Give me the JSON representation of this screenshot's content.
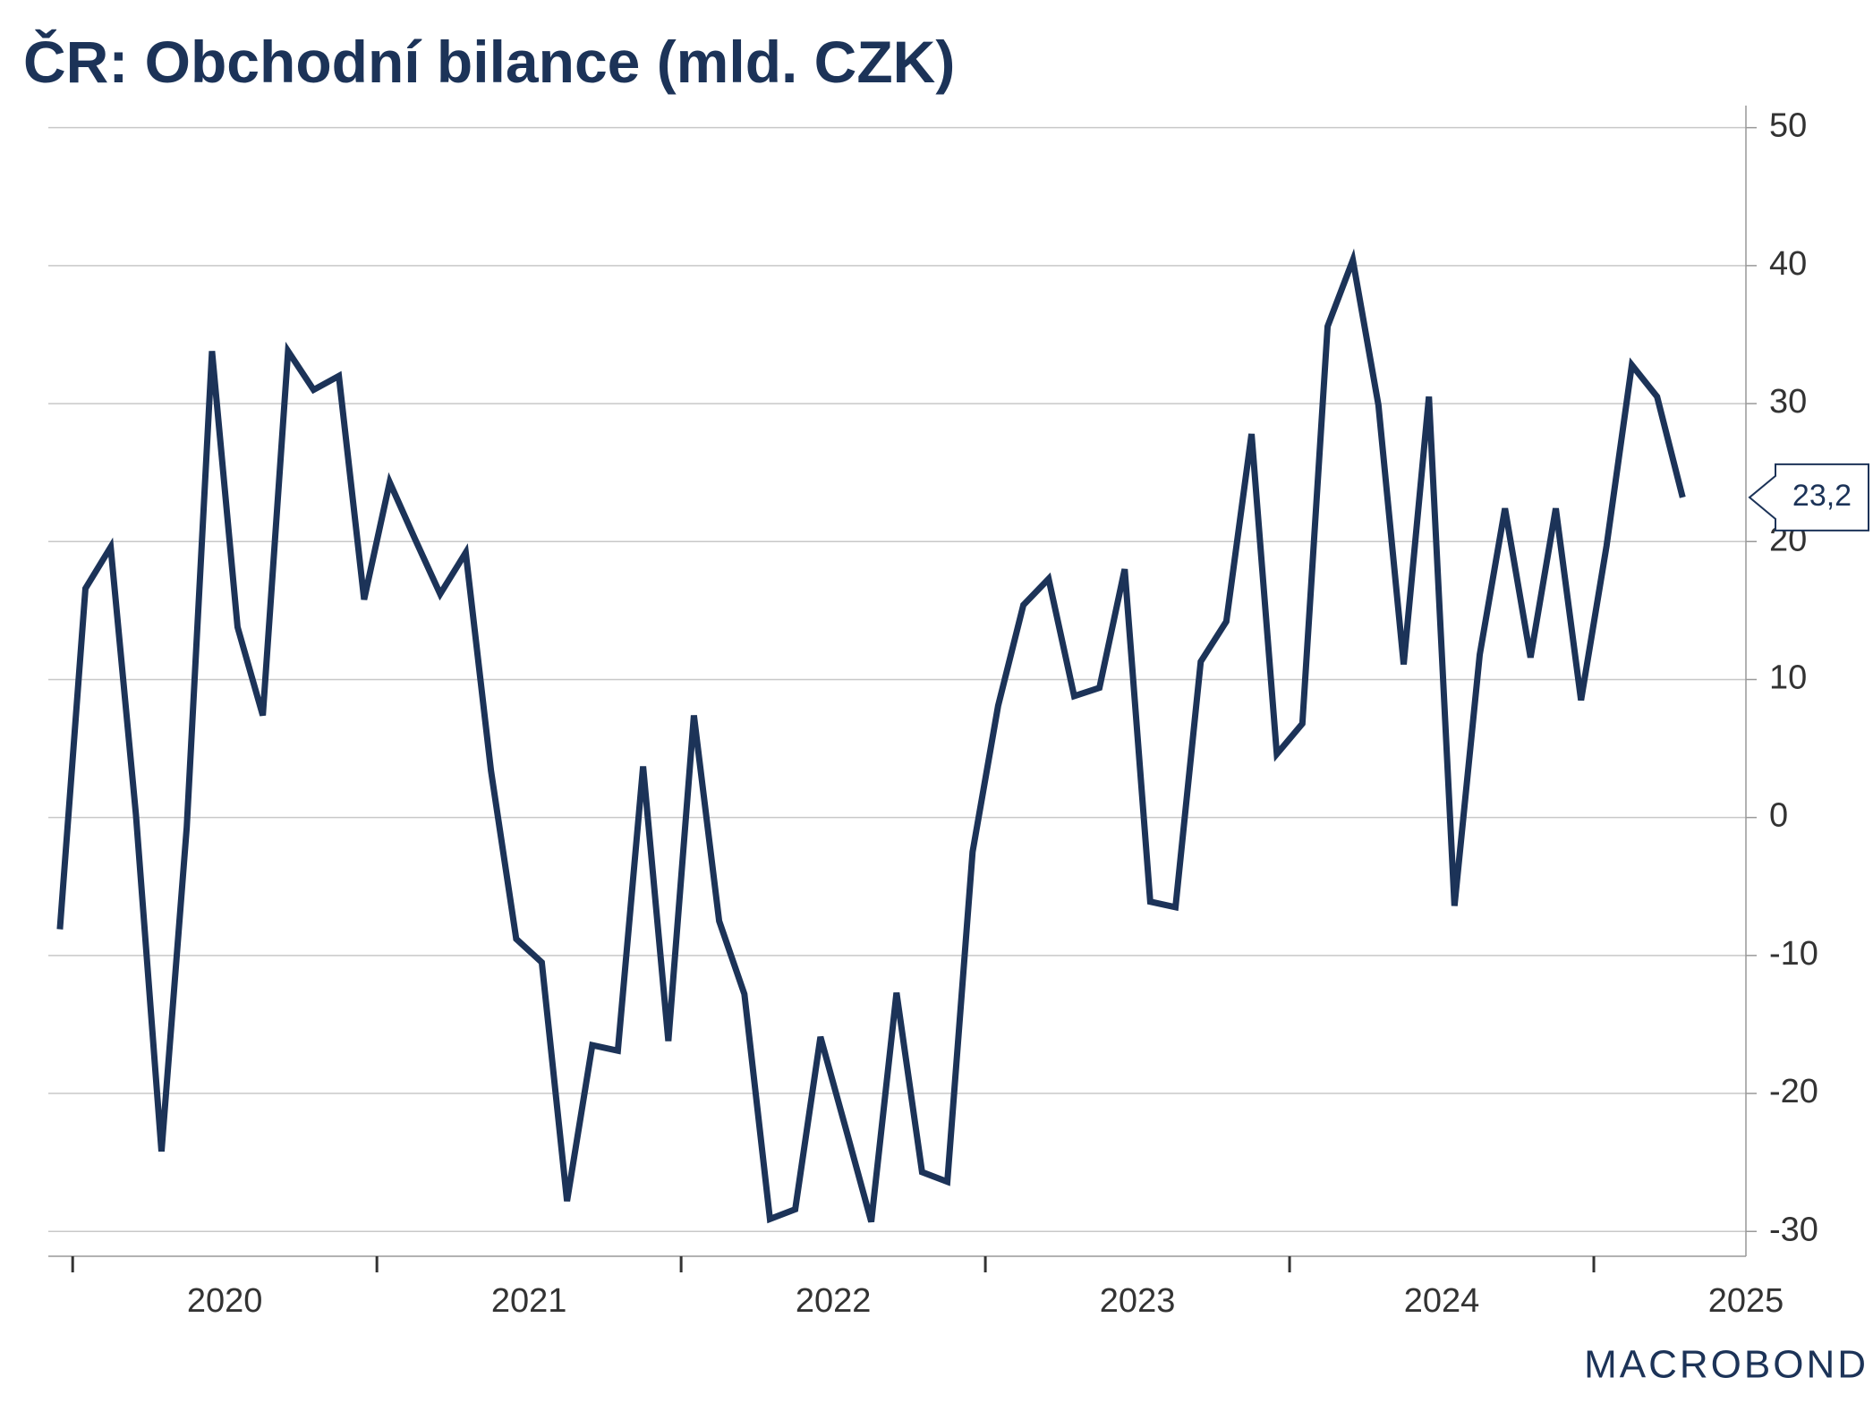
{
  "chart_data": {
    "type": "line",
    "title": "ČR: Obchodní bilance (mld. CZK)",
    "source": "MACROBOND",
    "x": [
      2019.958,
      2020.042,
      2020.125,
      2020.208,
      2020.292,
      2020.375,
      2020.458,
      2020.542,
      2020.625,
      2020.708,
      2020.792,
      2020.875,
      2020.958,
      2021.042,
      2021.125,
      2021.208,
      2021.292,
      2021.375,
      2021.458,
      2021.542,
      2021.625,
      2021.708,
      2021.792,
      2021.875,
      2021.958,
      2022.042,
      2022.125,
      2022.208,
      2022.292,
      2022.375,
      2022.458,
      2022.542,
      2022.625,
      2022.708,
      2022.792,
      2022.875,
      2022.958,
      2023.042,
      2023.125,
      2023.208,
      2023.292,
      2023.375,
      2023.458,
      2023.542,
      2023.625,
      2023.708,
      2023.792,
      2023.875,
      2023.958,
      2024.042,
      2024.125,
      2024.208,
      2024.292,
      2024.375,
      2024.458,
      2024.542,
      2024.625,
      2024.708,
      2024.792,
      2024.875,
      2024.958,
      2025.042,
      2025.125,
      2025.208,
      2025.292
    ],
    "series": [
      {
        "name": "Obchodní bilance",
        "color": "#1c3358",
        "values": [
          -8.1,
          16.6,
          19.6,
          0.2,
          -24.2,
          -0.7,
          33.8,
          13.8,
          7.4,
          33.8,
          31.0,
          32.0,
          15.8,
          24.3,
          20.2,
          16.2,
          19.2,
          3.4,
          -8.8,
          -10.5,
          -27.8,
          -16.5,
          -16.9,
          3.7,
          -16.2,
          7.4,
          -7.5,
          -12.8,
          -29.1,
          -28.4,
          -15.9,
          -22.6,
          -29.3,
          -12.7,
          -25.7,
          -26.4,
          -2.5,
          8.1,
          15.4,
          17.3,
          8.8,
          9.4,
          18.0,
          -6.1,
          -6.5,
          11.3,
          14.2,
          27.8,
          4.6,
          6.8,
          35.6,
          40.4,
          29.9,
          11.1,
          30.5,
          -6.4,
          11.8,
          22.4,
          11.6,
          22.4,
          8.5,
          19.7,
          32.8,
          30.5,
          23.2
        ]
      }
    ],
    "last_value_label": {
      "value": 23.2,
      "label": "23,2"
    },
    "xlim": [
      2019.92,
      2025.5
    ],
    "xticks": [
      2020,
      2021,
      2022,
      2023,
      2024,
      2025
    ],
    "ylim": [
      -31.8,
      51.6
    ],
    "yticks": [
      -30,
      -20,
      -10,
      0,
      10,
      20,
      30,
      40,
      50
    ],
    "grid": true
  }
}
